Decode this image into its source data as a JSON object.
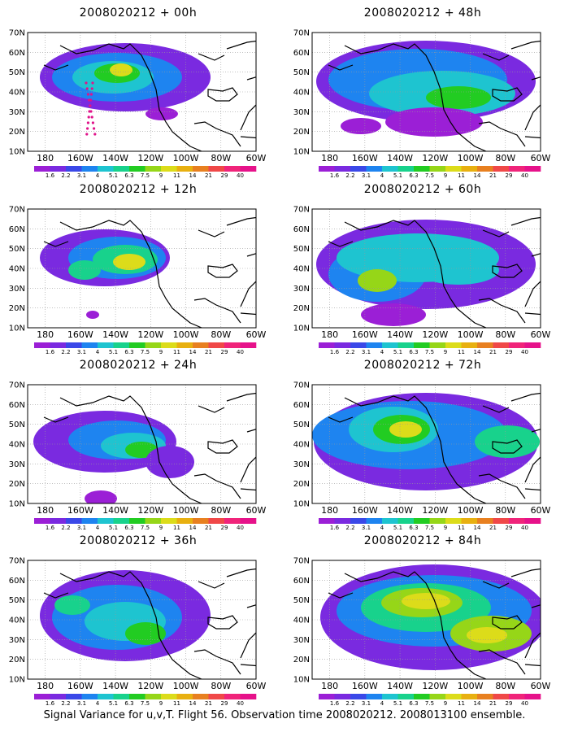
{
  "panels": [
    {
      "title": "2008020212 + 00h",
      "lead": "00h"
    },
    {
      "title": "2008020212 + 48h",
      "lead": "48h"
    },
    {
      "title": "2008020212 + 12h",
      "lead": "12h"
    },
    {
      "title": "2008020212 + 60h",
      "lead": "60h"
    },
    {
      "title": "2008020212 + 24h",
      "lead": "24h"
    },
    {
      "title": "2008020212 + 72h",
      "lead": "72h"
    },
    {
      "title": "2008020212 + 36h",
      "lead": "36h"
    },
    {
      "title": "2008020212 + 84h",
      "lead": "84h"
    }
  ],
  "lat_labels": [
    "70N",
    "60N",
    "50N",
    "40N",
    "30N",
    "20N",
    "10N"
  ],
  "lon_labels": [
    "180",
    "160W",
    "140W",
    "120W",
    "100W",
    "80W",
    "60W"
  ],
  "colorbar": {
    "labels": [
      "1.6",
      "2.2",
      "3.1",
      "4",
      "5.1",
      "6.3",
      "7.5",
      "9",
      "11",
      "14",
      "21",
      "29",
      "40"
    ],
    "colors": [
      "#9b1fd6",
      "#7a2ae0",
      "#3a48e8",
      "#1e84f0",
      "#1ec4d0",
      "#18d28c",
      "#22cc22",
      "#96d618",
      "#dcdc1a",
      "#e8b010",
      "#e88020",
      "#f04848",
      "#f0247a",
      "#e6128a"
    ]
  },
  "caption": "Signal Variance for u,v,T. Flight 56. Observation time 2008020212. 2008013100 ensemble."
}
